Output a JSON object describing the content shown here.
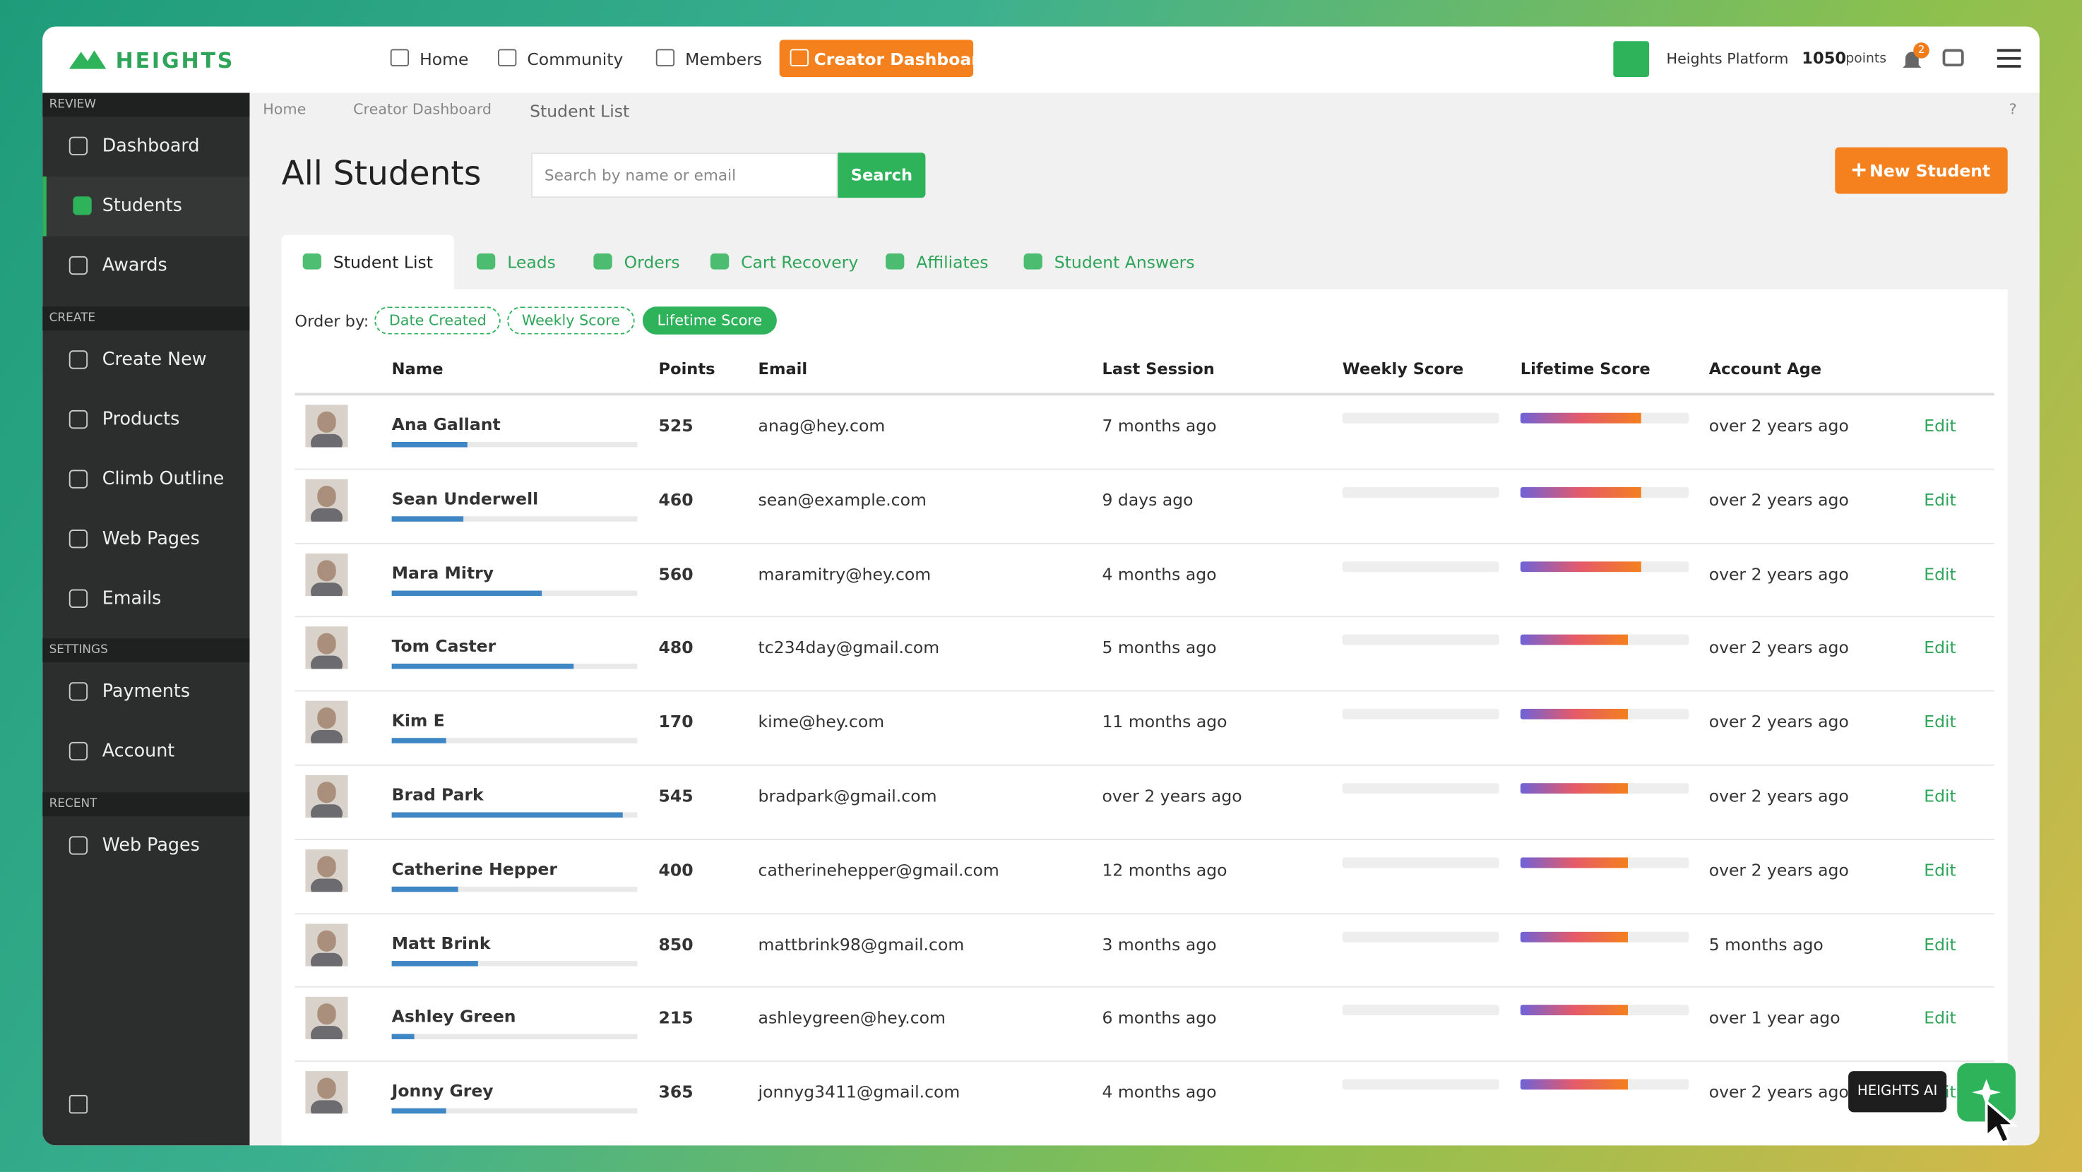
{
  "header": {
    "logo": "HEIGHTS",
    "nav": [
      "Home",
      "Community",
      "Members",
      "Creator Dashboard"
    ],
    "platform": "Heights Platform",
    "points": "1050",
    "points_unit": "points",
    "notifications": "2"
  },
  "sidebar": {
    "sections": [
      {
        "title": "REVIEW",
        "items": [
          "Dashboard",
          "Students",
          "Awards"
        ]
      },
      {
        "title": "CREATE",
        "items": [
          "Create New",
          "Products",
          "Climb Outline",
          "Web Pages",
          "Emails"
        ]
      },
      {
        "title": "SETTINGS",
        "items": [
          "Payments",
          "Account"
        ]
      },
      {
        "title": "RECENT",
        "items": [
          "Web Pages"
        ]
      }
    ],
    "active": [
      0,
      1
    ]
  },
  "breadcrumb": [
    "Home",
    "Creator Dashboard",
    "Student List"
  ],
  "help": "?",
  "page": {
    "title": "All Students",
    "search_placeholder": "Search by name or email",
    "search_button": "Search",
    "new_button": "New Student"
  },
  "tabs": [
    "Student List",
    "Leads",
    "Orders",
    "Cart Recovery",
    "Affiliates",
    "Student Answers"
  ],
  "order_by": {
    "label": "Order by:",
    "options": [
      "Date Created",
      "Weekly Score",
      "Lifetime Score"
    ],
    "active": 2
  },
  "table": {
    "columns": [
      "Name",
      "Points",
      "Email",
      "Last Session",
      "Weekly Score",
      "Lifetime Score",
      "Account Age"
    ],
    "rows": [
      {
        "name": "Ana Gallant",
        "points": 525,
        "email": "anag@hey.com",
        "last_session": "7 months ago",
        "account_age": "over 2 years ago",
        "action": "Edit",
        "progress": 31,
        "weekly_score": 0,
        "lifetime_score": 72
      },
      {
        "name": "Sean Underwell",
        "points": 460,
        "email": "sean@example.com",
        "last_session": "9 days ago",
        "account_age": "over 2 years ago",
        "action": "Edit",
        "progress": 29,
        "weekly_score": 0,
        "lifetime_score": 72
      },
      {
        "name": "Mara Mitry",
        "points": 560,
        "email": "maramitry@hey.com",
        "last_session": "4 months ago",
        "account_age": "over 2 years ago",
        "action": "Edit",
        "progress": 61,
        "weekly_score": 0,
        "lifetime_score": 72
      },
      {
        "name": "Tom Caster",
        "points": 480,
        "email": "tc234day@gmail.com",
        "last_session": "5 months ago",
        "account_age": "over 2 years ago",
        "action": "Edit",
        "progress": 74,
        "weekly_score": 0,
        "lifetime_score": 64
      },
      {
        "name": "Kim E",
        "points": 170,
        "email": "kime@hey.com",
        "last_session": "11 months ago",
        "account_age": "over 2 years ago",
        "action": "Edit",
        "progress": 22,
        "weekly_score": 0,
        "lifetime_score": 64
      },
      {
        "name": "Brad Park",
        "points": 545,
        "email": "bradpark@gmail.com",
        "last_session": "over 2 years ago",
        "account_age": "over 2 years ago",
        "action": "Edit",
        "progress": 94,
        "weekly_score": 0,
        "lifetime_score": 64
      },
      {
        "name": "Catherine Hepper",
        "points": 400,
        "email": "catherinehepper@gmail.com",
        "last_session": "12 months ago",
        "account_age": "over 2 years ago",
        "action": "Edit",
        "progress": 27,
        "weekly_score": 0,
        "lifetime_score": 64
      },
      {
        "name": "Matt Brink",
        "points": 850,
        "email": "mattbrink98@gmail.com",
        "last_session": "3 months ago",
        "account_age": "5 months ago",
        "action": "Edit",
        "progress": 35,
        "weekly_score": 0,
        "lifetime_score": 64
      },
      {
        "name": "Ashley Green",
        "points": 215,
        "email": "ashleygreen@hey.com",
        "last_session": "6 months ago",
        "account_age": "over 1 year ago",
        "action": "Edit",
        "progress": 9,
        "weekly_score": 0,
        "lifetime_score": 64
      },
      {
        "name": "Jonny Grey",
        "points": 365,
        "email": "jonnyg3411@gmail.com",
        "last_session": "4 months ago",
        "account_age": "over 2 years ago",
        "action": "Edit",
        "progress": 22,
        "weekly_score": 0,
        "lifetime_score": 64
      }
    ]
  },
  "assistant": {
    "label": "HEIGHTS AI"
  }
}
